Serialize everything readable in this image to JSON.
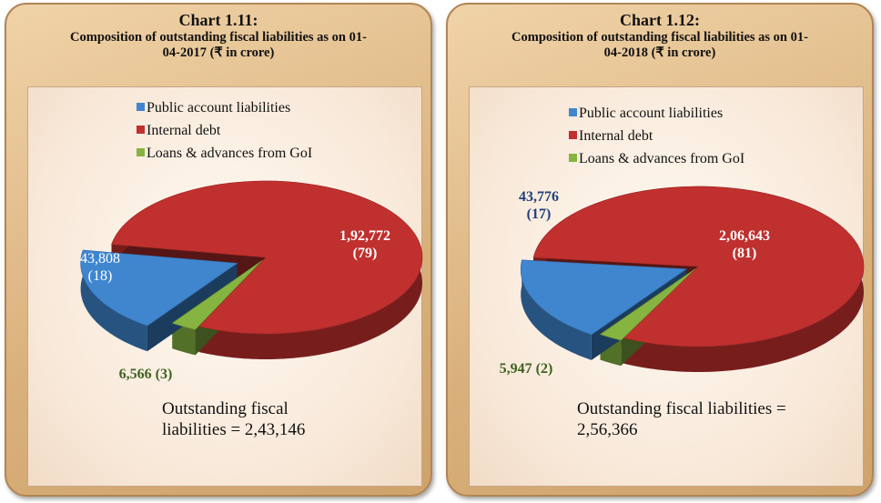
{
  "chart_data": [
    {
      "type": "pie",
      "title": "Chart 1.11:",
      "subtitle": "Composition of outstanding fiscal liabilities as on 01-04-2017 (₹ in crore)",
      "categories": [
        "Public account liabilities",
        "Internal debt",
        "Loans & advances from GoI"
      ],
      "values": [
        43808,
        192772,
        6566
      ],
      "value_labels": [
        "43,808",
        "1,92,772",
        "6,566"
      ],
      "percents": [
        18,
        79,
        3
      ],
      "percent_labels": [
        "(18)",
        "(79)",
        "(3)"
      ],
      "colors": [
        "#3f86cf",
        "#c0302e",
        "#86b440"
      ],
      "annotation": "Outstanding fiscal liabilities = 2,43,146"
    },
    {
      "type": "pie",
      "title": "Chart 1.12:",
      "subtitle": "Composition of outstanding fiscal liabilities as on 01-04-2018 (₹ in crore)",
      "categories": [
        "Public account liabilities",
        "Internal debt",
        "Loans & advances from GoI"
      ],
      "values": [
        43776,
        206643,
        5947
      ],
      "value_labels": [
        "43,776",
        "2,06,643",
        "5,947"
      ],
      "percents": [
        17,
        81,
        2
      ],
      "percent_labels": [
        "(17)",
        "(81)",
        "(2)"
      ],
      "colors": [
        "#3f86cf",
        "#c0302e",
        "#86b440"
      ],
      "annotation": "Outstanding fiscal liabilities = 2,56,366"
    }
  ]
}
